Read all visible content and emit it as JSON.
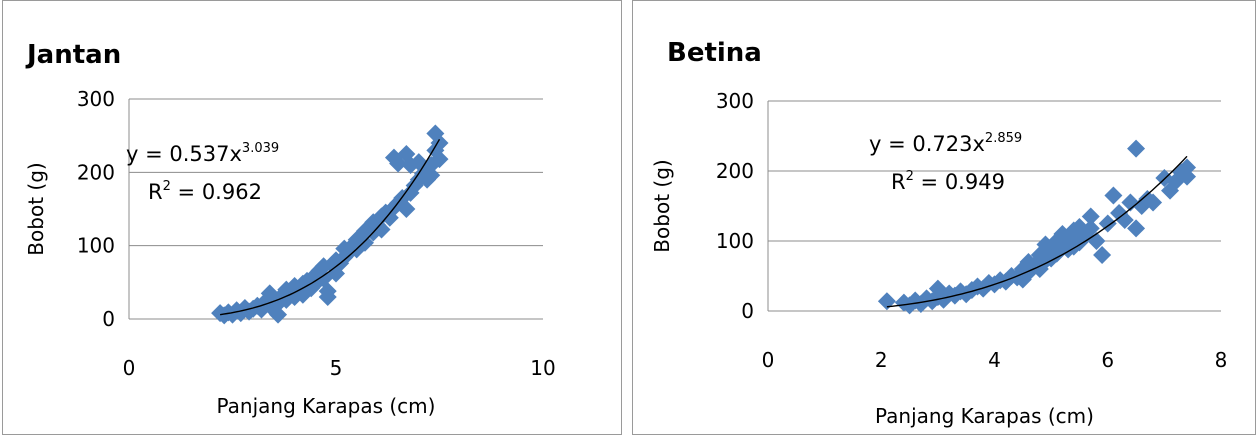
{
  "chart_data": [
    {
      "type": "scatter",
      "title": "Jantan",
      "xlabel": "Panjang Karapas (cm)",
      "ylabel": "Bobot (g)",
      "xlim": [
        0,
        10
      ],
      "ylim": [
        0,
        300
      ],
      "xticks": [
        0,
        5,
        10
      ],
      "yticks": [
        0,
        100,
        200,
        300
      ],
      "grid": "horizontal",
      "marker_color": "#4f81bd",
      "trendline_color": "#000000",
      "trendline": {
        "type": "power",
        "a": 0.537,
        "b": 3.039,
        "x_range": [
          2.2,
          7.5
        ]
      },
      "equation": {
        "prefix": "y = 0.537x",
        "exponent": "3.039"
      },
      "r_squared": {
        "prefix": "R",
        "sup": "2",
        "suffix": " = 0.962"
      },
      "points": [
        [
          2.2,
          8
        ],
        [
          2.3,
          5
        ],
        [
          2.4,
          9
        ],
        [
          2.5,
          6
        ],
        [
          2.6,
          12
        ],
        [
          2.7,
          8
        ],
        [
          2.8,
          15
        ],
        [
          2.9,
          10
        ],
        [
          3.0,
          14
        ],
        [
          3.1,
          18
        ],
        [
          3.2,
          13
        ],
        [
          3.3,
          24
        ],
        [
          3.4,
          35
        ],
        [
          3.4,
          18
        ],
        [
          3.5,
          28
        ],
        [
          3.6,
          6
        ],
        [
          3.6,
          21
        ],
        [
          3.7,
          32
        ],
        [
          3.8,
          40
        ],
        [
          3.8,
          26
        ],
        [
          3.9,
          35
        ],
        [
          4.0,
          30
        ],
        [
          4.0,
          45
        ],
        [
          4.1,
          38
        ],
        [
          4.2,
          48
        ],
        [
          4.2,
          33
        ],
        [
          4.3,
          52
        ],
        [
          4.4,
          42
        ],
        [
          4.5,
          60
        ],
        [
          4.5,
          48
        ],
        [
          4.6,
          66
        ],
        [
          4.7,
          55
        ],
        [
          4.7,
          72
        ],
        [
          4.8,
          38
        ],
        [
          4.8,
          30
        ],
        [
          4.9,
          74
        ],
        [
          5.0,
          62
        ],
        [
          5.0,
          80
        ],
        [
          5.1,
          76
        ],
        [
          5.2,
          96
        ],
        [
          5.2,
          84
        ],
        [
          5.3,
          90
        ],
        [
          5.4,
          100
        ],
        [
          5.5,
          108
        ],
        [
          5.5,
          95
        ],
        [
          5.6,
          112
        ],
        [
          5.7,
          120
        ],
        [
          5.7,
          104
        ],
        [
          5.8,
          125
        ],
        [
          5.9,
          118
        ],
        [
          5.9,
          132
        ],
        [
          6.0,
          128
        ],
        [
          6.1,
          140
        ],
        [
          6.1,
          122
        ],
        [
          6.2,
          145
        ],
        [
          6.3,
          138
        ],
        [
          6.4,
          152
        ],
        [
          6.4,
          220
        ],
        [
          6.5,
          158
        ],
        [
          6.5,
          212
        ],
        [
          6.6,
          165
        ],
        [
          6.7,
          150
        ],
        [
          6.7,
          225
        ],
        [
          6.8,
          172
        ],
        [
          6.8,
          210
        ],
        [
          6.9,
          182
        ],
        [
          7.0,
          190
        ],
        [
          7.0,
          214
        ],
        [
          7.1,
          198
        ],
        [
          7.2,
          190
        ],
        [
          7.3,
          210
        ],
        [
          7.3,
          196
        ],
        [
          7.4,
          230
        ],
        [
          7.4,
          253
        ],
        [
          7.5,
          218
        ],
        [
          7.5,
          240
        ]
      ]
    },
    {
      "type": "scatter",
      "title": "Betina",
      "xlabel": "Panjang Karapas (cm)",
      "ylabel": "Bobot (g)",
      "xlim": [
        0,
        8
      ],
      "ylim": [
        0,
        300
      ],
      "xticks": [
        0,
        2,
        4,
        6,
        8
      ],
      "yticks": [
        0,
        100,
        200,
        300
      ],
      "grid": "horizontal",
      "marker_color": "#4f81bd",
      "trendline_color": "#000000",
      "trendline": {
        "type": "power",
        "a": 0.723,
        "b": 2.859,
        "x_range": [
          2.1,
          7.4
        ]
      },
      "equation": {
        "prefix": "y = 0.723x",
        "exponent": "2.859"
      },
      "r_squared": {
        "prefix": "R",
        "sup": "2",
        "suffix": " = 0.949"
      },
      "points": [
        [
          2.1,
          14
        ],
        [
          2.4,
          12
        ],
        [
          2.5,
          8
        ],
        [
          2.6,
          15
        ],
        [
          2.7,
          10
        ],
        [
          2.8,
          18
        ],
        [
          2.9,
          14
        ],
        [
          3.0,
          32
        ],
        [
          3.0,
          20
        ],
        [
          3.1,
          16
        ],
        [
          3.2,
          25
        ],
        [
          3.3,
          22
        ],
        [
          3.4,
          28
        ],
        [
          3.5,
          24
        ],
        [
          3.6,
          30
        ],
        [
          3.7,
          35
        ],
        [
          3.8,
          32
        ],
        [
          3.9,
          40
        ],
        [
          4.0,
          38
        ],
        [
          4.1,
          44
        ],
        [
          4.2,
          42
        ],
        [
          4.3,
          50
        ],
        [
          4.4,
          48
        ],
        [
          4.5,
          60
        ],
        [
          4.5,
          45
        ],
        [
          4.6,
          70
        ],
        [
          4.6,
          55
        ],
        [
          4.7,
          65
        ],
        [
          4.8,
          80
        ],
        [
          4.8,
          60
        ],
        [
          4.9,
          95
        ],
        [
          4.9,
          72
        ],
        [
          5.0,
          88
        ],
        [
          5.0,
          75
        ],
        [
          5.1,
          100
        ],
        [
          5.1,
          82
        ],
        [
          5.2,
          95
        ],
        [
          5.2,
          110
        ],
        [
          5.3,
          105
        ],
        [
          5.3,
          88
        ],
        [
          5.4,
          115
        ],
        [
          5.4,
          92
        ],
        [
          5.5,
          120
        ],
        [
          5.5,
          98
        ],
        [
          5.6,
          108
        ],
        [
          5.7,
          135
        ],
        [
          5.7,
          118
        ],
        [
          5.8,
          100
        ],
        [
          5.9,
          80
        ],
        [
          6.0,
          125
        ],
        [
          6.1,
          165
        ],
        [
          6.2,
          140
        ],
        [
          6.3,
          130
        ],
        [
          6.4,
          155
        ],
        [
          6.5,
          232
        ],
        [
          6.5,
          118
        ],
        [
          6.6,
          150
        ],
        [
          6.7,
          160
        ],
        [
          6.8,
          155
        ],
        [
          7.0,
          190
        ],
        [
          7.1,
          172
        ],
        [
          7.2,
          185
        ],
        [
          7.3,
          198
        ],
        [
          7.4,
          205
        ],
        [
          7.4,
          192
        ]
      ]
    }
  ]
}
